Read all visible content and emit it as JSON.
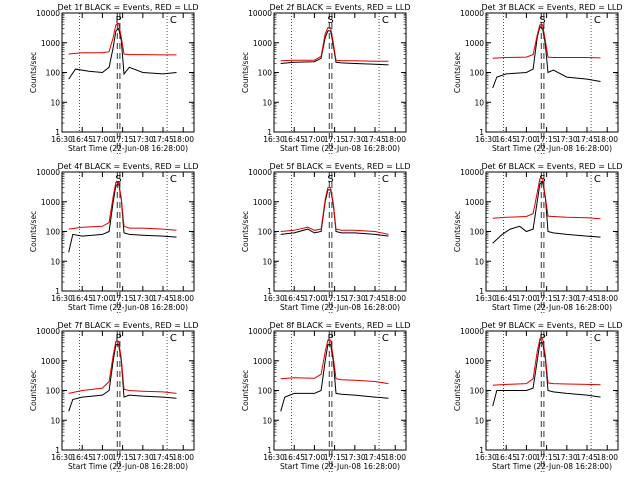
{
  "colors": {
    "events": "#000000",
    "lld": "#dd0000",
    "background": "#ffffff",
    "axis": "#000000"
  },
  "chart_data": [
    {
      "type": "line",
      "detector": "1f",
      "title": "Det 1f BLACK = Events, RED = LLD",
      "xlabel": "Start Time (22-Jun-08 16:28:00)",
      "ylabel": "Counts/sec",
      "yscale": "log",
      "ylim": [
        1,
        10000
      ],
      "y_ticks": [
        "1",
        "10",
        "100",
        "1000",
        "10000"
      ],
      "x_ticks": [
        "16:30",
        "16:45",
        "17:00",
        "17:15",
        "17:30",
        "17:45",
        "18:00"
      ],
      "markers": [
        "P",
        "C"
      ],
      "series": [
        {
          "name": "Events",
          "color": "#000000",
          "time": [
            "16:35",
            "16:40",
            "16:50",
            "17:00",
            "17:05",
            "17:08",
            "17:10",
            "17:12",
            "17:14",
            "17:16",
            "17:20",
            "17:30",
            "17:45",
            "17:55"
          ],
          "values": [
            60,
            130,
            110,
            100,
            150,
            700,
            2500,
            3000,
            1200,
            90,
            150,
            100,
            90,
            100
          ]
        },
        {
          "name": "LLD",
          "color": "#dd0000",
          "time": [
            "16:35",
            "16:45",
            "17:00",
            "17:05",
            "17:08",
            "17:10",
            "17:12",
            "17:14",
            "17:16",
            "17:20",
            "17:30",
            "17:45",
            "17:55"
          ],
          "values": [
            420,
            460,
            460,
            500,
            1500,
            4000,
            4500,
            1500,
            420,
            400,
            400,
            390,
            390
          ]
        }
      ]
    },
    {
      "type": "line",
      "detector": "2f",
      "title": "Det 2f BLACK = Events, RED = LLD",
      "xlabel": "Start Time (22-Jun-08 16:28:00)",
      "ylabel": "Counts/sec",
      "yscale": "log",
      "ylim": [
        1,
        10000
      ],
      "y_ticks": [
        "1",
        "10",
        "100",
        "1000",
        "10000"
      ],
      "x_ticks": [
        "16:30",
        "16:45",
        "17:00",
        "17:15",
        "17:30",
        "17:45",
        "18:00"
      ],
      "markers": [
        "S",
        "C"
      ],
      "series": [
        {
          "name": "Events",
          "color": "#000000",
          "time": [
            "16:35",
            "16:45",
            "17:00",
            "17:05",
            "17:08",
            "17:10",
            "17:12",
            "17:14",
            "17:16",
            "17:20",
            "17:30",
            "17:45",
            "17:55"
          ],
          "values": [
            200,
            220,
            230,
            300,
            1500,
            2500,
            2500,
            800,
            220,
            210,
            200,
            190,
            180
          ]
        },
        {
          "name": "LLD",
          "color": "#dd0000",
          "time": [
            "16:35",
            "16:45",
            "17:00",
            "17:05",
            "17:08",
            "17:10",
            "17:12",
            "17:14",
            "17:16",
            "17:20",
            "17:30",
            "17:45",
            "17:55"
          ],
          "values": [
            250,
            260,
            260,
            350,
            2000,
            3200,
            3200,
            1000,
            260,
            250,
            250,
            240,
            240
          ]
        }
      ]
    },
    {
      "type": "line",
      "detector": "3f",
      "title": "Det 3f BLACK = Events, RED = LLD",
      "xlabel": "Start Time (22-Jun-08 16:28:00)",
      "ylabel": "Counts/sec",
      "yscale": "log",
      "ylim": [
        1,
        10000
      ],
      "y_ticks": [
        "1",
        "10",
        "100",
        "1000",
        "10000"
      ],
      "x_ticks": [
        "16:30",
        "16:45",
        "17:00",
        "17:15",
        "17:30",
        "17:45",
        "18:00"
      ],
      "markers": [
        "S",
        "C"
      ],
      "series": [
        {
          "name": "Events",
          "color": "#000000",
          "time": [
            "16:35",
            "16:38",
            "16:45",
            "17:00",
            "17:05",
            "17:08",
            "17:10",
            "17:12",
            "17:14",
            "17:16",
            "17:20",
            "17:30",
            "17:45",
            "17:55"
          ],
          "values": [
            30,
            70,
            90,
            100,
            130,
            1500,
            3500,
            3000,
            900,
            100,
            120,
            70,
            60,
            50
          ]
        },
        {
          "name": "LLD",
          "color": "#dd0000",
          "time": [
            "16:35",
            "16:45",
            "17:00",
            "17:05",
            "17:08",
            "17:10",
            "17:12",
            "17:14",
            "17:16",
            "17:20",
            "17:30",
            "17:45",
            "17:55"
          ],
          "values": [
            300,
            320,
            330,
            400,
            1800,
            4000,
            4000,
            1200,
            330,
            320,
            320,
            320,
            310
          ]
        }
      ]
    },
    {
      "type": "line",
      "detector": "4f",
      "title": "Det 4f BLACK = Events, RED = LLD",
      "xlabel": "Start Time (22-Jun-08 16:28:00)",
      "ylabel": "Counts/sec",
      "yscale": "log",
      "ylim": [
        1,
        10000
      ],
      "y_ticks": [
        "1",
        "10",
        "100",
        "1000",
        "10000"
      ],
      "x_ticks": [
        "16:30",
        "16:45",
        "17:00",
        "17:15",
        "17:30",
        "17:45",
        "18:00"
      ],
      "markers": [
        "S",
        "C"
      ],
      "series": [
        {
          "name": "Events",
          "color": "#000000",
          "time": [
            "16:35",
            "16:38",
            "16:45",
            "17:00",
            "17:05",
            "17:08",
            "17:10",
            "17:12",
            "17:14",
            "17:16",
            "17:20",
            "17:30",
            "17:45",
            "17:55"
          ],
          "values": [
            20,
            80,
            70,
            80,
            100,
            1000,
            3500,
            4000,
            1200,
            90,
            80,
            75,
            70,
            65
          ]
        },
        {
          "name": "LLD",
          "color": "#dd0000",
          "time": [
            "16:35",
            "16:45",
            "17:00",
            "17:05",
            "17:08",
            "17:10",
            "17:12",
            "17:14",
            "17:16",
            "17:20",
            "17:30",
            "17:45",
            "17:55"
          ],
          "values": [
            120,
            140,
            150,
            200,
            1500,
            4500,
            4500,
            1300,
            150,
            130,
            130,
            120,
            110
          ]
        }
      ]
    },
    {
      "type": "line",
      "detector": "5f",
      "title": "Det 5f BLACK = Events, RED = LLD",
      "xlabel": "Start Time (22-Jun-08 16:28:00)",
      "ylabel": "Counts/sec",
      "yscale": "log",
      "ylim": [
        1,
        10000
      ],
      "y_ticks": [
        "1",
        "10",
        "100",
        "1000",
        "10000"
      ],
      "x_ticks": [
        "16:30",
        "16:45",
        "17:00",
        "17:15",
        "17:30",
        "17:45",
        "18:00"
      ],
      "markers": [
        "S",
        "C"
      ],
      "series": [
        {
          "name": "Events",
          "color": "#000000",
          "time": [
            "16:35",
            "16:45",
            "16:55",
            "17:00",
            "17:05",
            "17:08",
            "17:10",
            "17:12",
            "17:14",
            "17:16",
            "17:20",
            "17:30",
            "17:45",
            "17:55"
          ],
          "values": [
            80,
            90,
            120,
            90,
            100,
            1000,
            2500,
            2500,
            800,
            100,
            90,
            90,
            80,
            70
          ]
        },
        {
          "name": "LLD",
          "color": "#dd0000",
          "time": [
            "16:35",
            "16:45",
            "16:55",
            "17:00",
            "17:05",
            "17:08",
            "17:10",
            "17:12",
            "17:14",
            "17:16",
            "17:20",
            "17:30",
            "17:45",
            "17:55"
          ],
          "values": [
            100,
            110,
            140,
            110,
            120,
            1200,
            3000,
            3000,
            900,
            120,
            110,
            110,
            100,
            80
          ]
        }
      ]
    },
    {
      "type": "line",
      "detector": "6f",
      "title": "Det 6f BLACK = Events, RED = LLD",
      "xlabel": "Start Time (22-Jun-08 16:28:00)",
      "ylabel": "Counts/sec",
      "yscale": "log",
      "ylim": [
        1,
        10000
      ],
      "y_ticks": [
        "1",
        "10",
        "100",
        "1000",
        "10000"
      ],
      "x_ticks": [
        "16:30",
        "16:45",
        "17:00",
        "17:15",
        "17:30",
        "17:45",
        "18:00"
      ],
      "markers": [
        "S",
        "C"
      ],
      "series": [
        {
          "name": "Events",
          "color": "#000000",
          "time": [
            "16:35",
            "16:42",
            "16:48",
            "16:55",
            "17:00",
            "17:05",
            "17:08",
            "17:10",
            "17:12",
            "17:14",
            "17:16",
            "17:20",
            "17:30",
            "17:45",
            "17:55"
          ],
          "values": [
            40,
            80,
            120,
            150,
            100,
            120,
            1000,
            4000,
            4500,
            1500,
            100,
            90,
            80,
            70,
            65
          ]
        },
        {
          "name": "LLD",
          "color": "#dd0000",
          "time": [
            "16:35",
            "16:45",
            "17:00",
            "17:05",
            "17:08",
            "17:10",
            "17:12",
            "17:14",
            "17:16",
            "17:20",
            "17:30",
            "17:45",
            "17:55"
          ],
          "values": [
            280,
            300,
            320,
            400,
            2000,
            6000,
            6000,
            1500,
            330,
            320,
            300,
            290,
            270
          ]
        }
      ]
    },
    {
      "type": "line",
      "detector": "7f",
      "title": "Det 7f BLACK = Events, RED = LLD",
      "xlabel": "Start Time (22-Jun-08 16:28:00)",
      "ylabel": "Counts/sec",
      "yscale": "log",
      "ylim": [
        1,
        10000
      ],
      "y_ticks": [
        "1",
        "10",
        "100",
        "1000",
        "10000"
      ],
      "x_ticks": [
        "16:30",
        "16:45",
        "17:00",
        "17:15",
        "17:30",
        "17:45",
        "18:00"
      ],
      "markers": [
        "P",
        "C"
      ],
      "series": [
        {
          "name": "Events",
          "color": "#000000",
          "time": [
            "16:35",
            "16:38",
            "16:45",
            "17:00",
            "17:05",
            "17:08",
            "17:10",
            "17:12",
            "17:14",
            "17:16",
            "17:20",
            "17:30",
            "17:45",
            "17:55"
          ],
          "values": [
            20,
            50,
            60,
            70,
            100,
            1000,
            3500,
            3500,
            1000,
            60,
            70,
            65,
            60,
            55
          ]
        },
        {
          "name": "LLD",
          "color": "#dd0000",
          "time": [
            "16:35",
            "16:45",
            "17:00",
            "17:05",
            "17:08",
            "17:10",
            "17:12",
            "17:14",
            "17:16",
            "17:20",
            "17:30",
            "17:45",
            "17:55"
          ],
          "values": [
            80,
            100,
            120,
            200,
            1500,
            4500,
            4500,
            1200,
            110,
            100,
            95,
            90,
            80
          ]
        }
      ]
    },
    {
      "type": "line",
      "detector": "8f",
      "title": "Det 8f BLACK = Events, RED = LLD",
      "xlabel": "Start Time (22-Jun-08 16:28:00)",
      "ylabel": "Counts/sec",
      "yscale": "log",
      "ylim": [
        1,
        10000
      ],
      "y_ticks": [
        "1",
        "10",
        "100",
        "1000",
        "10000"
      ],
      "x_ticks": [
        "16:30",
        "16:45",
        "17:00",
        "17:15",
        "17:30",
        "17:45",
        "18:00"
      ],
      "markers": [
        "P",
        "C"
      ],
      "series": [
        {
          "name": "Events",
          "color": "#000000",
          "time": [
            "16:35",
            "16:38",
            "16:45",
            "17:00",
            "17:05",
            "17:08",
            "17:10",
            "17:12",
            "17:14",
            "17:16",
            "17:20",
            "17:30",
            "17:45",
            "17:55"
          ],
          "values": [
            20,
            60,
            80,
            80,
            100,
            1000,
            3500,
            3500,
            1000,
            80,
            75,
            70,
            60,
            55
          ]
        },
        {
          "name": "LLD",
          "color": "#dd0000",
          "time": [
            "16:35",
            "16:45",
            "17:00",
            "17:05",
            "17:08",
            "17:10",
            "17:12",
            "17:14",
            "17:16",
            "17:20",
            "17:30",
            "17:45",
            "17:55"
          ],
          "values": [
            250,
            270,
            260,
            350,
            2000,
            5000,
            5000,
            1300,
            250,
            230,
            220,
            200,
            170
          ]
        }
      ]
    },
    {
      "type": "line",
      "detector": "9f",
      "title": "Det 9f BLACK = Events, RED = LLD",
      "xlabel": "Start Time (22-Jun-08 16:28:00)",
      "ylabel": "Counts/sec",
      "yscale": "log",
      "ylim": [
        1,
        10000
      ],
      "y_ticks": [
        "1",
        "10",
        "100",
        "1000",
        "10000"
      ],
      "x_ticks": [
        "16:30",
        "16:45",
        "17:00",
        "17:15",
        "17:30",
        "17:45",
        "18:00"
      ],
      "markers": [
        "P",
        "C"
      ],
      "series": [
        {
          "name": "Events",
          "color": "#000000",
          "time": [
            "16:35",
            "16:38",
            "16:45",
            "17:00",
            "17:05",
            "17:08",
            "17:10",
            "17:12",
            "17:14",
            "17:16",
            "17:20",
            "17:30",
            "17:45",
            "17:55"
          ],
          "values": [
            30,
            100,
            100,
            100,
            120,
            1000,
            4000,
            4000,
            1200,
            100,
            90,
            80,
            70,
            60
          ]
        },
        {
          "name": "LLD",
          "color": "#dd0000",
          "time": [
            "16:35",
            "16:45",
            "17:00",
            "17:05",
            "17:08",
            "17:10",
            "17:12",
            "17:14",
            "17:16",
            "17:20",
            "17:30",
            "17:45",
            "17:55"
          ],
          "values": [
            150,
            160,
            170,
            250,
            2000,
            5500,
            5500,
            1500,
            180,
            170,
            165,
            160,
            155
          ]
        }
      ]
    }
  ]
}
